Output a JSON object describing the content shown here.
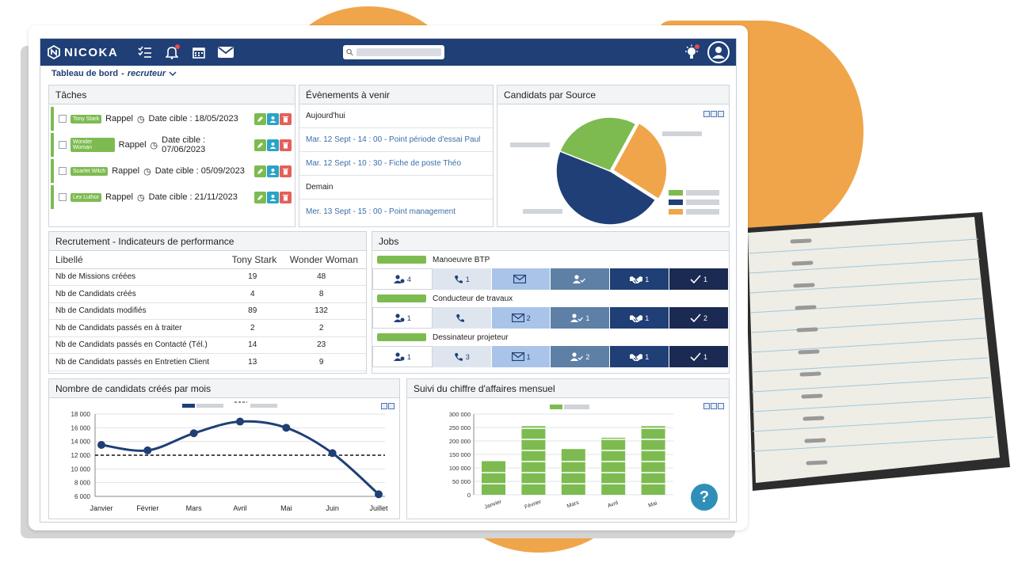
{
  "brand": {
    "name": "NICOKA"
  },
  "colors": {
    "navy": "#1f3f76",
    "green": "#7dbb50",
    "orange": "#f0a54a",
    "teal": "#2aa3c7",
    "red": "#e5605a"
  },
  "breadcrumb": {
    "page": "Tableau de bord",
    "separator": "-",
    "role": "recruteur"
  },
  "tasks": {
    "title": "Tâches",
    "items": [
      {
        "person": "Tony Stark",
        "type": "Rappel",
        "date": "Date cible : 18/05/2023"
      },
      {
        "person": "Wonder Woman",
        "type": "Rappel",
        "date": "Date cible : 07/06/2023"
      },
      {
        "person": "Scarlet Witch",
        "type": "Rappel",
        "date": "Date cible : 05/09/2023"
      },
      {
        "person": "Lex Luthor",
        "type": "Rappel",
        "date": "Date cible : 21/11/2023"
      }
    ]
  },
  "events": {
    "title": "Évènements à venir",
    "items": [
      {
        "kind": "day",
        "text": "Aujourd'hui"
      },
      {
        "kind": "link",
        "text": "Mar. 12 Sept - 14 : 00 - Point période d'essai Paul"
      },
      {
        "kind": "link",
        "text": "Mar. 12 Sept - 10 : 30 - Fiche de poste Théo"
      },
      {
        "kind": "day",
        "text": "Demain"
      },
      {
        "kind": "link",
        "text": "Mer. 13 Sept - 15 : 00 - Point management"
      }
    ]
  },
  "sources": {
    "title": "Candidats par Source",
    "slices": [
      {
        "value": 47,
        "color": "#1f3f76"
      },
      {
        "value": 27,
        "color": "#7dbb50"
      },
      {
        "value": 26,
        "color": "#f0a54a"
      }
    ]
  },
  "kpi": {
    "title": "Recrutement - Indicateurs de performance",
    "headers": [
      "Libellé",
      "Tony Stark",
      "Wonder Woman"
    ],
    "rows": [
      [
        "Nb de Missions créées",
        "19",
        "48"
      ],
      [
        "Nb de Candidats créés",
        "4",
        "8"
      ],
      [
        "Nb de Candidats modifiés",
        "89",
        "132"
      ],
      [
        "Nb de Candidats passés en à traiter",
        "2",
        "2"
      ],
      [
        "Nb de Candidats passés en Contacté (Tél.)",
        "14",
        "23"
      ],
      [
        "Nb de Candidats passés en Entretien Client",
        "13",
        "9"
      ]
    ]
  },
  "jobs": {
    "title": "Jobs",
    "items": [
      {
        "name": "Manoeuvre BTP",
        "counts": [
          "4",
          "1",
          "",
          "",
          "1",
          "1"
        ]
      },
      {
        "name": "Conducteur de travaux",
        "counts": [
          "1",
          "",
          "2",
          "1",
          "1",
          "2"
        ]
      },
      {
        "name": "Dessinateur projeteur",
        "counts": [
          "1",
          "3",
          "1",
          "2",
          "1",
          "1"
        ]
      }
    ],
    "icons": [
      "candidates-icon",
      "phone-icon",
      "mail-icon",
      "validated-icon",
      "handshake-icon",
      "check-icon"
    ]
  },
  "candidates_chart": {
    "title": "Nombre de candidats créés par mois"
  },
  "revenue_chart": {
    "title": "Suivi du chiffre d'affaires mensuel"
  },
  "chart_data": [
    {
      "type": "line",
      "title": "Nombre de candidats créés par mois",
      "categories": [
        "Janvier",
        "Février",
        "Mars",
        "Avril",
        "Mai",
        "Juin",
        "Juillet"
      ],
      "series": [
        {
          "values": [
            13500,
            12700,
            15200,
            16900,
            16000,
            12300,
            6300
          ],
          "color": "#1f3f76"
        },
        {
          "values": [
            12000,
            12000,
            12000,
            12000,
            12000,
            12000,
            12000
          ],
          "color": "#111111",
          "dashed": true
        }
      ],
      "yticks": [
        "18 000",
        "16 000",
        "14 000",
        "12 000",
        "10 000",
        "8 000",
        "6 000"
      ],
      "ylim": [
        6000,
        18000
      ],
      "grid": true,
      "legend": "top"
    },
    {
      "type": "bar",
      "title": "Suivi du chiffre d'affaires mensuel",
      "categories": [
        "Janvier",
        "Février",
        "Mars",
        "Avril",
        "Mai"
      ],
      "values": [
        125000,
        255000,
        170000,
        212000,
        255000
      ],
      "yticks": [
        "300 000",
        "250 000",
        "200 000",
        "150 000",
        "100 000",
        "50 000",
        "0"
      ],
      "ylim": [
        0,
        300000
      ],
      "color": "#7dbb50",
      "grid": true,
      "legend": "top"
    }
  ],
  "help": {
    "label": "?"
  }
}
